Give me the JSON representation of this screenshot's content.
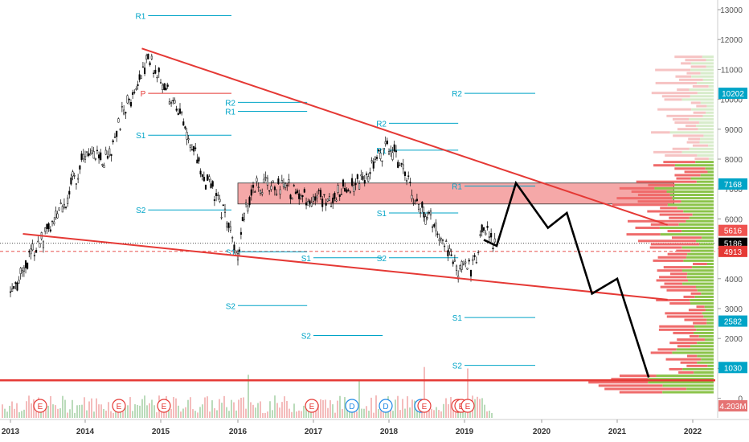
{
  "chart_data": {
    "type": "candlestick",
    "x_ticks": [
      "2013",
      "2014",
      "2015",
      "2016",
      "2017",
      "2018",
      "2019",
      "2020",
      "2021",
      "2022"
    ],
    "y_ticks": [
      "0",
      "1000",
      "2000",
      "3000",
      "4000",
      "5000",
      "6000",
      "7000",
      "8000",
      "9000",
      "10000",
      "11000",
      "12000",
      "13000"
    ],
    "ylim": [
      0,
      13300
    ],
    "price_series": [
      [
        "2013-01",
        3400
      ],
      [
        "2013-04",
        4700
      ],
      [
        "2013-08",
        5800
      ],
      [
        "2013-11",
        7200
      ],
      [
        "2014-01",
        8200
      ],
      [
        "2014-04",
        7900
      ],
      [
        "2014-08",
        10000
      ],
      [
        "2014-11",
        11400
      ],
      [
        "2015-01",
        10600
      ],
      [
        "2015-04",
        9500
      ],
      [
        "2015-08",
        7300
      ],
      [
        "2015-11",
        6200
      ],
      [
        "2016-01",
        4900
      ],
      [
        "2016-02",
        6300
      ],
      [
        "2016-04",
        7100
      ],
      [
        "2016-08",
        7100
      ],
      [
        "2016-11",
        6800
      ],
      [
        "2017-03",
        6700
      ],
      [
        "2017-06",
        7000
      ],
      [
        "2017-10",
        7600
      ],
      [
        "2018-01",
        8500
      ],
      [
        "2018-03",
        7800
      ],
      [
        "2018-06",
        6300
      ],
      [
        "2018-09",
        5600
      ],
      [
        "2018-12",
        4300
      ],
      [
        "2019-02",
        4400
      ],
      [
        "2019-04",
        5600
      ],
      [
        "2019-06",
        5200
      ]
    ],
    "projection": [
      [
        "2019-04",
        5300
      ],
      [
        "2019-06",
        5100
      ],
      [
        "2019-09",
        7200
      ],
      [
        "2020-02",
        5700
      ],
      [
        "2020-05",
        6200
      ],
      [
        "2020-09",
        3500
      ],
      [
        "2021-01",
        4000
      ],
      [
        "2021-06",
        700
      ]
    ],
    "trendlines": [
      {
        "from": [
          "2014-10",
          11700
        ],
        "to": [
          "2021-09",
          5800
        ]
      },
      {
        "from": [
          "2013-03",
          5500
        ],
        "to": [
          "2021-09",
          3300
        ]
      }
    ],
    "horizontal_line": 600,
    "zone": {
      "from": "2016-01",
      "to": "2021-10",
      "low": 6500,
      "high": 7200
    },
    "pivot_sets": [
      {
        "x0": "2014-11",
        "x1": "2015-12",
        "p": 10200,
        "r1": 12800,
        "r2": null,
        "s1": 8800,
        "s2": 6300
      },
      {
        "x0": "2016-01",
        "x1": "2016-12",
        "p": null,
        "r1": 9600,
        "r2": 9900,
        "s1": 4900,
        "s2": 3100
      },
      {
        "x0": "2017-01",
        "x1": "2017-12",
        "p": null,
        "r1": null,
        "r2": null,
        "s1": 4700,
        "s2": 2100
      },
      {
        "x0": "2018-01",
        "x1": "2018-12",
        "p": null,
        "r1": 8300,
        "r2": 9200,
        "s1": 6200,
        "s2": 4700
      },
      {
        "x0": "2019-01",
        "x1": "2019-12",
        "p": null,
        "r1": 7100,
        "r2": 10200,
        "s1": 2700,
        "s2": 1100
      }
    ],
    "event_markers": [
      "E",
      "E",
      "E",
      "E",
      "D",
      "D",
      "D",
      "E",
      "E",
      "E",
      "E"
    ],
    "volume_profile": "horizontal histogram of traded volume per price level",
    "price_labels": [
      {
        "value": "10202",
        "color": "#00a4c7"
      },
      {
        "value": "7168",
        "color": "#00a4c7"
      },
      {
        "value": "5616",
        "color": "#ef5350"
      },
      {
        "value": "5186",
        "color": "#000000"
      },
      {
        "value": "4913",
        "color": "#e53935"
      },
      {
        "value": "2582",
        "color": "#00a4c7"
      },
      {
        "value": "1030",
        "color": "#00a4c7"
      },
      {
        "value": "4.203M",
        "color": "#e57373"
      }
    ],
    "dotted_line_value": 5186,
    "dashed_line_value": 4913
  },
  "pivot_text": {
    "p": "P",
    "r1": "R1",
    "r2": "R2",
    "s1": "S1",
    "s2": "S2"
  },
  "colors": {
    "cyan": "#00a4c7",
    "red": "#e53935",
    "black": "#000000",
    "zone": "#f28b8b",
    "green": "#8bc34a"
  }
}
